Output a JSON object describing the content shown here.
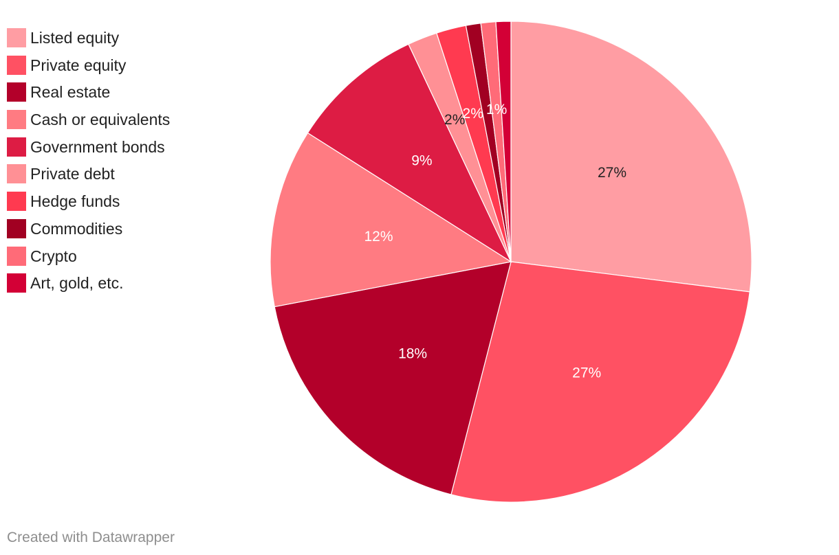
{
  "chart_data": {
    "type": "pie",
    "title": "",
    "slices": [
      {
        "label": "Listed equity",
        "value": 27,
        "display": "27%",
        "color": "#ff9da3",
        "label_color": "#222222"
      },
      {
        "label": "Private equity",
        "value": 27,
        "display": "27%",
        "color": "#ff5163",
        "label_color": "#ffffff"
      },
      {
        "label": "Real estate",
        "value": 18,
        "display": "18%",
        "color": "#b3002a",
        "label_color": "#ffffff"
      },
      {
        "label": "Cash or equivalents",
        "value": 12,
        "display": "12%",
        "color": "#ff7b82",
        "label_color": "#ffffff"
      },
      {
        "label": "Government bonds",
        "value": 9,
        "display": "9%",
        "color": "#dd1c44",
        "label_color": "#ffffff"
      },
      {
        "label": "Private debt",
        "value": 2,
        "display": "2%",
        "color": "#ff9095",
        "label_color": "#222222"
      },
      {
        "label": "Hedge funds",
        "value": 2,
        "display": "2%",
        "color": "#ff3a50",
        "label_color": "#ffffff"
      },
      {
        "label": "Commodities",
        "value": 1,
        "display": "",
        "color": "#a10022",
        "label_color": "#ffffff"
      },
      {
        "label": "Crypto",
        "value": 1,
        "display": "1%",
        "color": "#ff6b78",
        "label_color": "#ffffff"
      },
      {
        "label": "Art, gold, etc.",
        "value": 1,
        "display": "",
        "color": "#d30036",
        "label_color": "#ffffff"
      }
    ],
    "legend_position": "top-left"
  },
  "footer": {
    "credit": "Created with Datawrapper"
  }
}
